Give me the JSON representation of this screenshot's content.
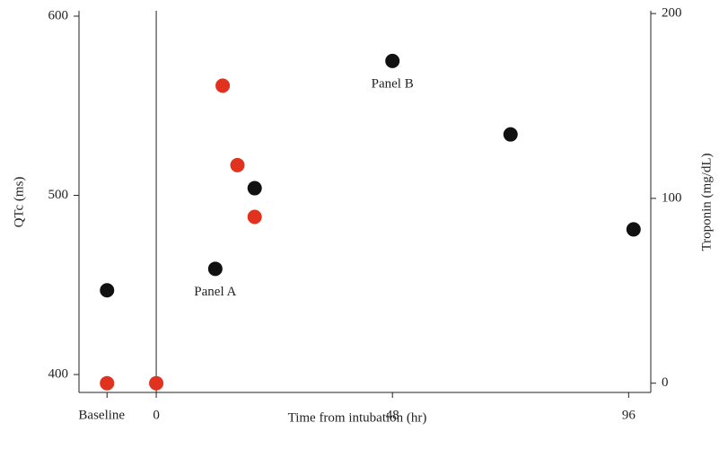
{
  "chart_data": {
    "type": "scatter",
    "x_label": "Time from intubation (hr)",
    "y_label": "QTc (ms)",
    "y2_label": "Troponin (mg/dL)",
    "xlim": [
      -15.7,
      100.5
    ],
    "xticks": [
      {
        "value": -10,
        "label": "Baseline"
      },
      0,
      48,
      96
    ],
    "ylim": [
      390,
      603
    ],
    "yticks": [
      400,
      500,
      600
    ],
    "y2lim": [
      -5,
      201.5
    ],
    "y2ticks": [
      0,
      100,
      200
    ],
    "vline": 0,
    "grid": false,
    "series": [
      {
        "color": "#111111",
        "x": [
          -10,
          12,
          20,
          48,
          72,
          97
        ],
        "values": [
          447,
          459,
          504,
          575,
          534,
          481
        ]
      },
      {
        "color": "#e0321e",
        "axis": "y2",
        "x": [
          -10,
          0,
          13.5,
          16.5,
          20
        ],
        "values": [
          0,
          0,
          161,
          118,
          90
        ]
      }
    ],
    "annotations": [
      {
        "text": "Panel A",
        "x": 12,
        "y": 459
      },
      {
        "text": "Panel B",
        "x": 48,
        "y": 575
      }
    ]
  }
}
